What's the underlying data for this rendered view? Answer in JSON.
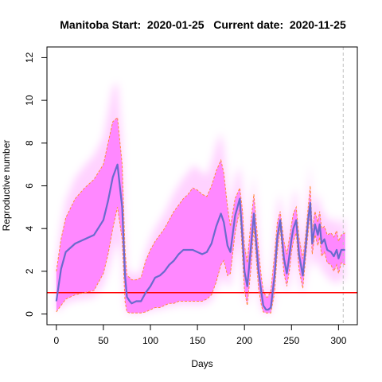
{
  "chart_data": {
    "type": "line",
    "title": "Manitoba Start:  2020-01-25   Current date:  2020-11-25",
    "xlabel": "Days",
    "ylabel": "Reproductive number",
    "xlim": [
      -10,
      320
    ],
    "ylim": [
      -0.5,
      12.5
    ],
    "x_ticks": [
      0,
      50,
      100,
      150,
      200,
      250,
      300
    ],
    "y_ticks": [
      0,
      2,
      4,
      6,
      8,
      10,
      12
    ],
    "current_day": 305,
    "reference_line": {
      "y": 1,
      "color": "#ff0000"
    },
    "colors": {
      "median": "#6a6acd",
      "band": "#ff80ff",
      "bounds": "#ff8c3a",
      "reference": "#ff0000",
      "current_marker": "#c0c0c0"
    },
    "series": [
      {
        "role": "median",
        "x": [
          0,
          5,
          10,
          20,
          30,
          40,
          50,
          55,
          60,
          65,
          70,
          73,
          75,
          78,
          80,
          85,
          90,
          95,
          100,
          105,
          110,
          115,
          120,
          125,
          130,
          135,
          140,
          145,
          150,
          155,
          160,
          165,
          170,
          175,
          178,
          182,
          185,
          190,
          195,
          198,
          200,
          203,
          207,
          210,
          215,
          218,
          220,
          223,
          225,
          228,
          232,
          235,
          238,
          242,
          245,
          248,
          250,
          252,
          255,
          258,
          262,
          265,
          268,
          270,
          272,
          275,
          278,
          280,
          282,
          285,
          288,
          292,
          295,
          298,
          300,
          303,
          307
        ],
        "y": [
          0.6,
          2.1,
          2.9,
          3.3,
          3.5,
          3.7,
          4.4,
          5.3,
          6.4,
          7.0,
          5.0,
          1.8,
          0.8,
          0.6,
          0.5,
          0.6,
          0.6,
          1.0,
          1.3,
          1.7,
          1.8,
          2.0,
          2.3,
          2.5,
          2.8,
          3.0,
          3.0,
          3.0,
          2.9,
          2.8,
          2.9,
          3.3,
          4.1,
          4.7,
          4.3,
          3.2,
          2.9,
          4.6,
          5.4,
          3.5,
          2.0,
          1.3,
          3.2,
          4.7,
          2.0,
          1.0,
          0.4,
          0.2,
          0.2,
          0.3,
          1.8,
          3.6,
          4.4,
          2.6,
          1.9,
          2.8,
          3.5,
          4.0,
          4.4,
          2.8,
          1.8,
          3.1,
          4.5,
          5.2,
          3.3,
          4.2,
          3.7,
          4.2,
          3.3,
          3.5,
          3.0,
          2.9,
          2.7,
          3.0,
          2.6,
          3.0,
          3.0
        ]
      },
      {
        "role": "upper",
        "x": [
          0,
          5,
          10,
          20,
          30,
          40,
          50,
          55,
          60,
          65,
          70,
          73,
          75,
          78,
          80,
          85,
          90,
          95,
          100,
          105,
          110,
          115,
          120,
          125,
          130,
          135,
          140,
          145,
          150,
          155,
          160,
          165,
          170,
          175,
          178,
          182,
          185,
          190,
          195,
          198,
          200,
          203,
          207,
          210,
          215,
          218,
          220,
          223,
          225,
          228,
          232,
          235,
          238,
          242,
          245,
          248,
          250,
          252,
          255,
          258,
          262,
          265,
          268,
          270,
          272,
          275,
          278,
          280,
          282,
          285,
          288,
          292,
          295,
          298,
          300,
          303,
          307
        ],
        "y": [
          2.0,
          3.5,
          4.5,
          5.4,
          5.9,
          6.3,
          7.0,
          8.0,
          9.0,
          9.2,
          7.0,
          3.0,
          1.8,
          1.7,
          1.6,
          1.6,
          1.7,
          2.5,
          3.0,
          3.4,
          3.7,
          4.0,
          4.4,
          4.8,
          5.1,
          5.4,
          5.6,
          5.9,
          5.8,
          5.6,
          5.5,
          6.0,
          6.7,
          7.2,
          6.6,
          5.0,
          4.1,
          5.4,
          5.9,
          4.8,
          3.2,
          2.4,
          4.4,
          5.6,
          3.0,
          1.7,
          1.1,
          0.8,
          0.8,
          1.1,
          2.8,
          4.3,
          4.8,
          3.4,
          2.8,
          3.6,
          4.2,
          4.7,
          5.0,
          3.6,
          2.6,
          3.7,
          5.1,
          6.0,
          3.9,
          4.8,
          4.3,
          4.8,
          4.0,
          4.1,
          3.7,
          3.8,
          3.6,
          3.9,
          3.4,
          3.7,
          3.8
        ]
      },
      {
        "role": "lower",
        "x": [
          0,
          5,
          10,
          20,
          30,
          40,
          50,
          55,
          60,
          65,
          70,
          73,
          75,
          78,
          80,
          85,
          90,
          95,
          100,
          105,
          110,
          115,
          120,
          125,
          130,
          135,
          140,
          145,
          150,
          155,
          160,
          165,
          170,
          175,
          178,
          182,
          185,
          190,
          195,
          198,
          200,
          203,
          207,
          210,
          215,
          218,
          220,
          223,
          225,
          228,
          232,
          235,
          238,
          242,
          245,
          248,
          250,
          252,
          255,
          258,
          262,
          265,
          268,
          270,
          272,
          275,
          278,
          280,
          282,
          285,
          288,
          292,
          295,
          298,
          300,
          303,
          307
        ],
        "y": [
          0.1,
          0.4,
          0.7,
          0.9,
          1.0,
          1.1,
          1.9,
          2.8,
          4.0,
          5.0,
          3.5,
          0.6,
          0.1,
          0.05,
          0.05,
          0.05,
          0.05,
          0.1,
          0.2,
          0.3,
          0.3,
          0.4,
          0.5,
          0.5,
          0.6,
          0.6,
          0.6,
          0.6,
          0.6,
          0.6,
          0.7,
          0.9,
          1.5,
          2.3,
          2.5,
          1.8,
          1.9,
          3.8,
          4.9,
          2.6,
          1.1,
          0.4,
          2.2,
          4.0,
          1.2,
          0.4,
          0.1,
          0.05,
          0.05,
          0.05,
          1.0,
          2.9,
          4.0,
          1.9,
          1.3,
          2.1,
          2.9,
          3.4,
          3.8,
          2.1,
          1.2,
          2.6,
          3.9,
          4.6,
          2.8,
          3.7,
          3.2,
          3.6,
          2.7,
          2.9,
          2.4,
          2.3,
          2.0,
          2.3,
          1.9,
          2.4,
          2.3
        ]
      }
    ]
  }
}
